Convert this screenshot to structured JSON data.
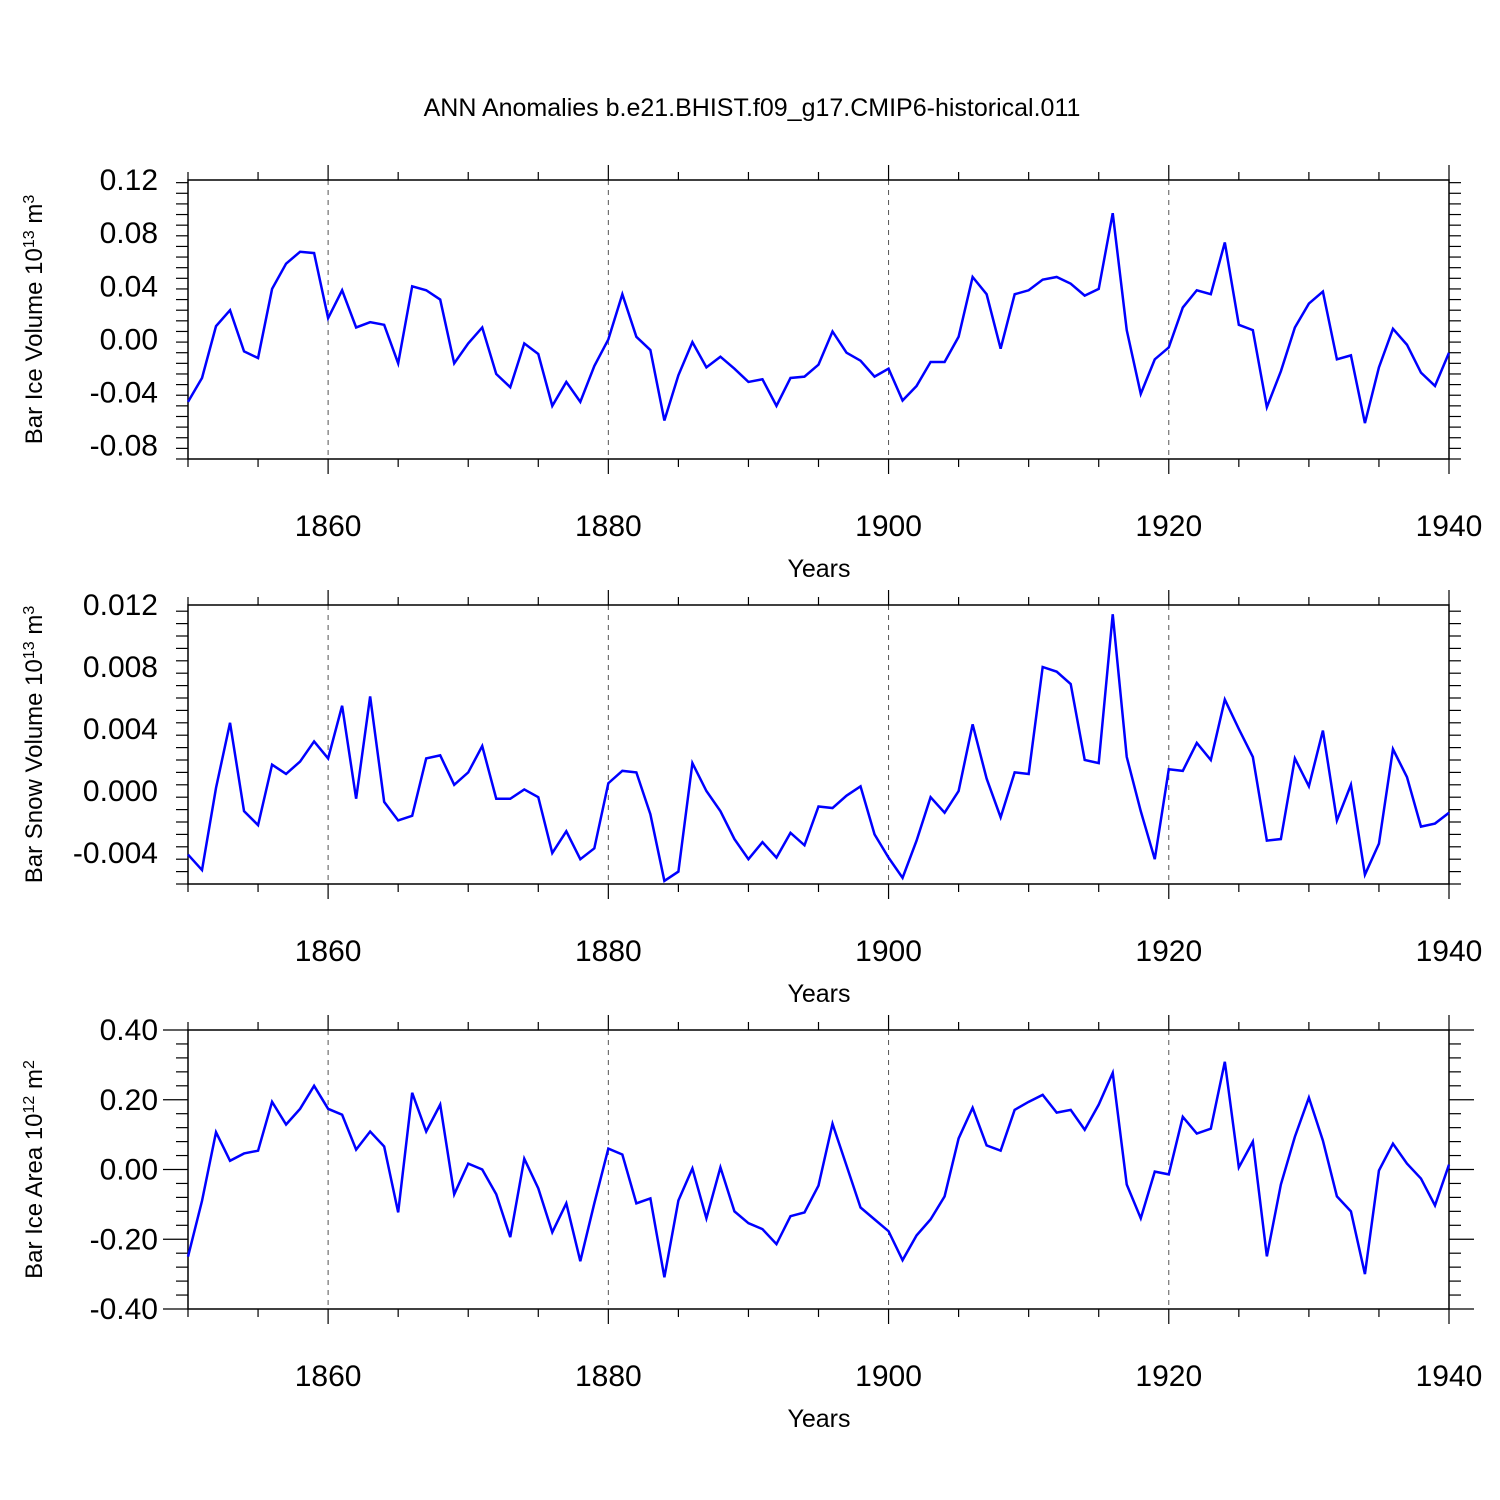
{
  "title": "ANN Anomalies b.e21.BHIST.f09_g17.CMIP6-historical.011",
  "line_color": "#0000ff",
  "chart_data": [
    {
      "type": "line",
      "ylabel": "Bar Ice Volume 10",
      "ylabel_exp": "13",
      "ylabel_unit": " m",
      "ylabel_unit_exp": "3",
      "xlabel": "Years",
      "xlim": [
        1850,
        1940
      ],
      "ylim": [
        -0.09,
        0.12
      ],
      "xticks": [
        1860,
        1880,
        1900,
        1920,
        1940
      ],
      "xtick_labels": [
        "1860",
        "1880",
        "1900",
        "1920",
        "1940"
      ],
      "yticks": [
        -0.08,
        -0.04,
        0.0,
        0.04,
        0.08,
        0.12
      ],
      "ytick_labels": [
        "-0.08",
        "-0.04",
        "0.00",
        "0.04",
        "0.08",
        "0.12"
      ],
      "x_start": 1850,
      "values": [
        -0.047,
        -0.029,
        0.01,
        0.022,
        -0.009,
        -0.014,
        0.038,
        0.057,
        0.066,
        0.065,
        0.016,
        0.037,
        0.009,
        0.013,
        0.011,
        -0.018,
        0.04,
        0.037,
        0.03,
        -0.018,
        -0.003,
        0.009,
        -0.026,
        -0.036,
        -0.003,
        -0.011,
        -0.05,
        -0.032,
        -0.047,
        -0.02,
        0.0,
        0.034,
        0.002,
        -0.008,
        -0.061,
        -0.027,
        -0.002,
        -0.021,
        -0.013,
        -0.022,
        -0.032,
        -0.03,
        -0.05,
        -0.029,
        -0.028,
        -0.019,
        0.006,
        -0.01,
        -0.016,
        -0.028,
        -0.022,
        -0.046,
        -0.035,
        -0.017,
        -0.017,
        0.002,
        0.047,
        0.034,
        -0.007,
        0.034,
        0.037,
        0.045,
        0.047,
        0.042,
        0.033,
        0.038,
        0.095,
        0.007,
        -0.041,
        -0.015,
        -0.006,
        0.024,
        0.037,
        0.034,
        0.073,
        0.011,
        0.007,
        -0.051,
        -0.024,
        0.009,
        0.027,
        0.036,
        -0.015,
        -0.012,
        -0.063,
        -0.021,
        0.008,
        -0.004,
        -0.025,
        -0.035,
        -0.01
      ]
    },
    {
      "type": "line",
      "ylabel": "Bar Snow Volume 10",
      "ylabel_exp": "13",
      "ylabel_unit": " m",
      "ylabel_unit_exp": "3",
      "xlabel": "Years",
      "xlim": [
        1850,
        1940
      ],
      "ylim": [
        -0.006,
        0.012
      ],
      "xticks": [
        1860,
        1880,
        1900,
        1920,
        1940
      ],
      "xtick_labels": [
        "1860",
        "1880",
        "1900",
        "1920",
        "1940"
      ],
      "yticks": [
        -0.004,
        0.0,
        0.004,
        0.008,
        0.012
      ],
      "ytick_labels": [
        "-0.004",
        "0.000",
        "0.004",
        "0.008",
        "0.012"
      ],
      "x_start": 1850,
      "values": [
        -0.0041,
        -0.0051,
        0.0002,
        0.0044,
        -0.0013,
        -0.0022,
        0.0017,
        0.0011,
        0.0019,
        0.0032,
        0.0021,
        0.0055,
        -0.0005,
        0.0061,
        -0.0007,
        -0.0019,
        -0.0016,
        0.0021,
        0.0023,
        0.0004,
        0.0012,
        0.0029,
        -0.0005,
        -0.0005,
        0.0001,
        -0.0004,
        -0.004,
        -0.0026,
        -0.0044,
        -0.0037,
        0.0005,
        0.0013,
        0.0012,
        -0.0015,
        -0.0058,
        -0.0052,
        0.0018,
        0.0,
        -0.0013,
        -0.0031,
        -0.0044,
        -0.0033,
        -0.0043,
        -0.0027,
        -0.0035,
        -0.001,
        -0.0011,
        -0.0003,
        0.0003,
        -0.0028,
        -0.0043,
        -0.0056,
        -0.0032,
        -0.0004,
        -0.0014,
        0.0,
        0.0043,
        0.0008,
        -0.0017,
        0.0012,
        0.0011,
        0.008,
        0.0077,
        0.0069,
        0.002,
        0.0018,
        0.0114,
        0.0022,
        -0.0013,
        -0.0044,
        0.0014,
        0.0013,
        0.0031,
        0.002,
        0.0059,
        0.004,
        0.0022,
        -0.0032,
        -0.0031,
        0.0021,
        0.0003,
        0.0039,
        -0.0019,
        0.0004,
        -0.0054,
        -0.0034,
        0.0027,
        0.0009,
        -0.0023,
        -0.0021,
        -0.0014
      ]
    },
    {
      "type": "line",
      "ylabel": "Bar Ice Area 10",
      "ylabel_exp": "12",
      "ylabel_unit": " m",
      "ylabel_unit_exp": "2",
      "xlabel": "Years",
      "xlim": [
        1850,
        1940
      ],
      "ylim": [
        -0.4,
        0.4
      ],
      "xticks": [
        1860,
        1880,
        1900,
        1920,
        1940
      ],
      "xtick_labels": [
        "1860",
        "1880",
        "1900",
        "1920",
        "1940"
      ],
      "yticks": [
        -0.4,
        -0.2,
        0.0,
        0.2,
        0.4
      ],
      "ytick_labels": [
        "-0.40",
        "-0.20",
        "0.00",
        "0.20",
        "0.40"
      ],
      "x_start": 1850,
      "values": [
        -0.25,
        -0.09,
        0.107,
        0.025,
        0.046,
        0.054,
        0.194,
        0.129,
        0.174,
        0.24,
        0.174,
        0.157,
        0.057,
        0.109,
        0.066,
        -0.123,
        0.22,
        0.109,
        0.186,
        -0.071,
        0.017,
        0.0,
        -0.071,
        -0.194,
        0.031,
        -0.054,
        -0.18,
        -0.097,
        -0.263,
        -0.097,
        0.06,
        0.043,
        -0.097,
        -0.083,
        -0.309,
        -0.089,
        0.003,
        -0.14,
        0.006,
        -0.12,
        -0.154,
        -0.171,
        -0.214,
        -0.134,
        -0.123,
        -0.046,
        0.131,
        0.011,
        -0.109,
        -0.143,
        -0.177,
        -0.26,
        -0.189,
        -0.143,
        -0.077,
        0.089,
        0.177,
        0.069,
        0.054,
        0.171,
        0.194,
        0.214,
        0.163,
        0.171,
        0.114,
        0.186,
        0.277,
        -0.043,
        -0.14,
        -0.006,
        -0.014,
        0.151,
        0.103,
        0.117,
        0.309,
        0.006,
        0.08,
        -0.249,
        -0.043,
        0.094,
        0.206,
        0.083,
        -0.077,
        -0.12,
        -0.3,
        -0.003,
        0.074,
        0.017,
        -0.026,
        -0.103,
        0.014
      ]
    }
  ]
}
